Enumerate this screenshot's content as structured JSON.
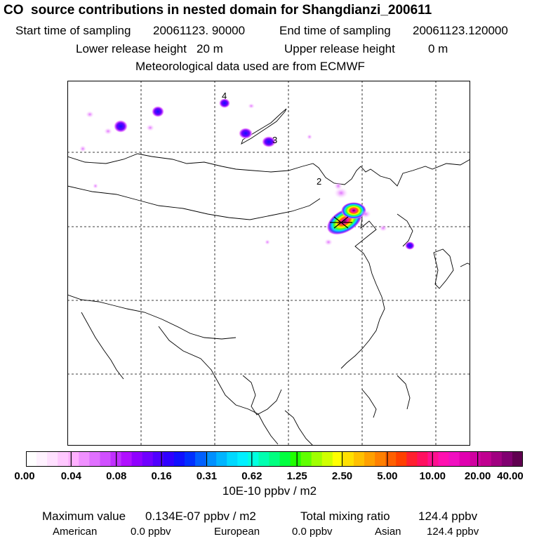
{
  "header": {
    "title": "CO  source contributions in nested domain for Shangdianzi_200611",
    "start_label": "Start time of sampling",
    "start_value": "20061123. 90000",
    "end_label": "End time of sampling",
    "end_value": "20061123.120000",
    "lower_label": "Lower release height",
    "lower_value": "20 m",
    "upper_label": "Upper release height",
    "upper_value": "0 m",
    "met": "Meteorological data used are from ECMWF"
  },
  "map": {
    "contour_labels": [
      "4",
      "3",
      "2"
    ],
    "colors": {
      "background": "#ffffff",
      "frame": "#000000",
      "grid": "#000000",
      "marker": "#000000"
    }
  },
  "colorbar": {
    "units": "10E-10 ppbv / m2",
    "ticks": [
      "0.00",
      "0.04",
      "0.08",
      "0.16",
      "0.31",
      "0.62",
      "1.25",
      "2.50",
      "5.00",
      "10.00",
      "20.00",
      "40.00"
    ],
    "colors": [
      "#ffffff",
      "#fff2ff",
      "#ffe0ff",
      "#ffc8ff",
      "#ffb0ff",
      "#f090ff",
      "#e070ff",
      "#d050ff",
      "#c030ff",
      "#b010ff",
      "#9000ff",
      "#7000ff",
      "#5000ff",
      "#3000ff",
      "#1010ff",
      "#0030ff",
      "#0060ff",
      "#0090ff",
      "#00b4ff",
      "#00d8ff",
      "#00f0ff",
      "#00ffe0",
      "#00ffb0",
      "#00ff80",
      "#00ff40",
      "#20ff00",
      "#60ff00",
      "#a0ff00",
      "#d0ff00",
      "#ffff00",
      "#ffe000",
      "#ffc000",
      "#ffa000",
      "#ff8000",
      "#ff6000",
      "#ff4000",
      "#ff2030",
      "#ff1060",
      "#ff1090",
      "#ff10b0",
      "#f010c0",
      "#e000b0",
      "#d000a0",
      "#c00090",
      "#a00080",
      "#800070",
      "#600050"
    ]
  },
  "stats": {
    "max_label": "Maximum value",
    "max_value": "0.134E-07 ppbv / m2",
    "total_label": "Total mixing ratio",
    "total_value": "124.4 ppbv",
    "regions": [
      {
        "name": "American",
        "value": "0.0 ppbv"
      },
      {
        "name": "European",
        "value": "0.0 ppbv"
      },
      {
        "name": "Asian",
        "value": "124.4 ppbv"
      }
    ]
  }
}
